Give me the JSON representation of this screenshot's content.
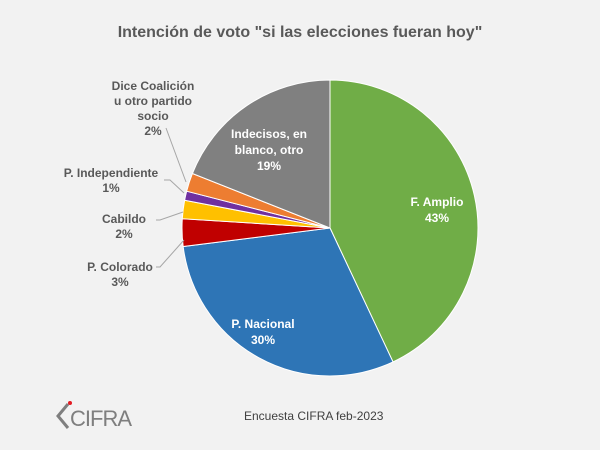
{
  "chart_data": {
    "type": "pie",
    "title": "Intención de voto \"si las elecciones fueran hoy\"",
    "slices": [
      {
        "name": "F. Amplio",
        "value": 43,
        "label": "43%",
        "color": "#70ad47",
        "label_inside": true
      },
      {
        "name": "P. Nacional",
        "value": 30,
        "label": "30%",
        "color": "#2e75b6",
        "label_inside": true
      },
      {
        "name": "P. Colorado",
        "value": 3,
        "label": "3%",
        "color": "#c00000",
        "label_inside": false
      },
      {
        "name": "Cabildo",
        "value": 2,
        "label": "2%",
        "color": "#ffc000",
        "label_inside": false
      },
      {
        "name": "P. Independiente",
        "value": 1,
        "label": "1%",
        "color": "#7030a0",
        "label_inside": false
      },
      {
        "name": "Dice Coalición u otro partido socio",
        "value": 2,
        "label": "2%",
        "color": "#ed7d31",
        "label_inside": false
      },
      {
        "name": "Indecisos, en blanco, otro",
        "value": 19,
        "label": "19%",
        "color": "#808080",
        "label_inside": true
      }
    ],
    "start_angle": "12 o'clock",
    "direction": "clockwise"
  },
  "labels": {
    "amplio": [
      "F. Amplio",
      "43%"
    ],
    "nacional": [
      "P. Nacional",
      "30%"
    ],
    "colorado": [
      "P. Colorado",
      "3%"
    ],
    "cabildo": [
      "Cabildo",
      "2%"
    ],
    "independiente": [
      "P. Independiente",
      "1%"
    ],
    "coalicion": [
      "Dice Coalición",
      "u otro partido",
      "socio",
      "2%"
    ],
    "indecisos": [
      "Indecisos, en",
      "blanco, otro",
      "19%"
    ]
  },
  "footer": {
    "source": "Encuesta CIFRA feb-2023",
    "logo_text": "CIFRA"
  }
}
